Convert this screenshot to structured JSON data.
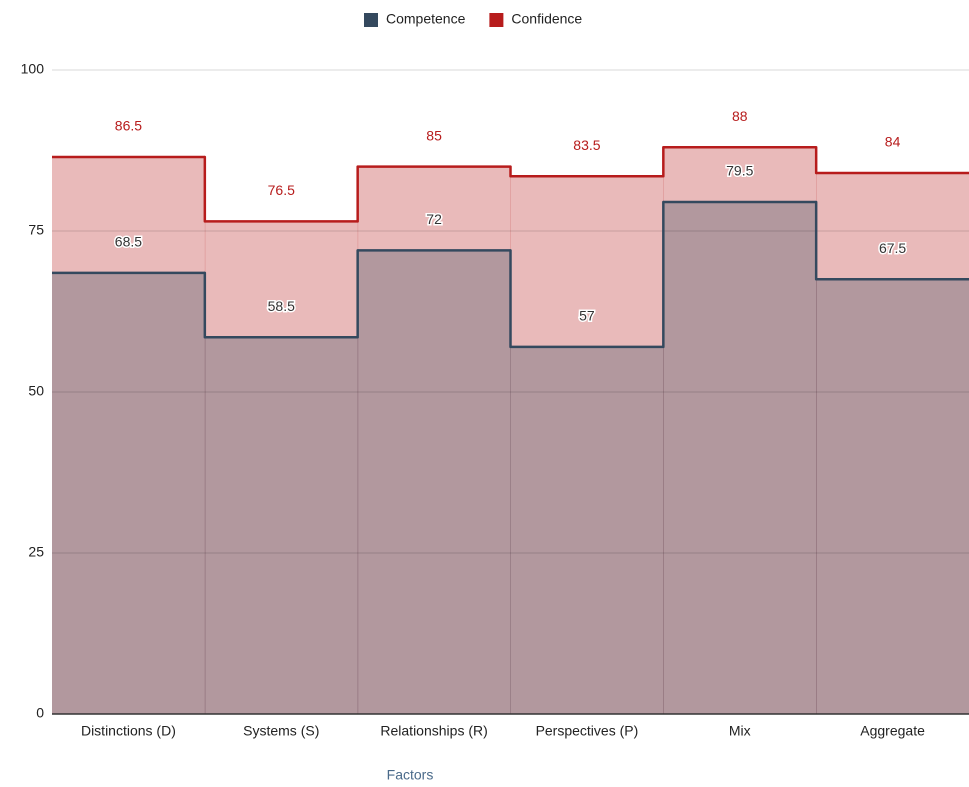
{
  "chart_data": {
    "type": "stepped-area",
    "categories": [
      "Distinctions (D)",
      "Systems (S)",
      "Relationships (R)",
      "Perspectives (P)",
      "Mix",
      "Aggregate"
    ],
    "series": [
      {
        "name": "Competence",
        "color": "#34495e",
        "values": [
          68.5,
          58.5,
          72,
          57,
          79.5,
          67.5
        ]
      },
      {
        "name": "Confidence",
        "color": "#b71c1c",
        "values": [
          86.5,
          76.5,
          85,
          83.5,
          88,
          84
        ]
      }
    ],
    "x_label": "Factors",
    "ylim": [
      0,
      100
    ],
    "yticks": [
      0,
      25,
      50,
      75,
      100
    ],
    "grid": true,
    "legend": "top"
  }
}
